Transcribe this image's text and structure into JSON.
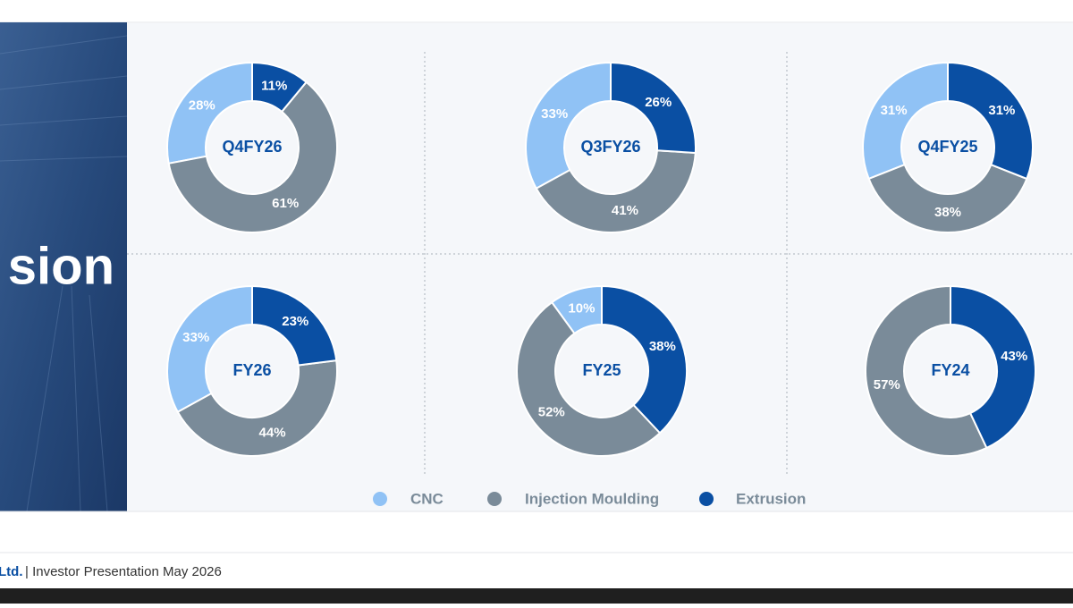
{
  "slide": {
    "heading": "sion",
    "footer_company": "Ltd.",
    "footer_text": "| Investor Presentation May 2026"
  },
  "chart_data": [
    {
      "type": "pie",
      "title": "Q4FY26",
      "categories": [
        "CNC",
        "Injection Moulding",
        "Extrusion"
      ],
      "values": [
        28,
        61,
        11
      ],
      "value_labels": [
        "28%",
        "61%",
        "11%"
      ],
      "colors": [
        "#90c2f5",
        "#7a8b99",
        "#0a4fa3"
      ]
    },
    {
      "type": "pie",
      "title": "Q3FY26",
      "categories": [
        "CNC",
        "Injection Moulding",
        "Extrusion"
      ],
      "values": [
        33,
        41,
        26
      ],
      "value_labels": [
        "33%",
        "41%",
        "26%"
      ],
      "colors": [
        "#90c2f5",
        "#7a8b99",
        "#0a4fa3"
      ]
    },
    {
      "type": "pie",
      "title": "Q4FY25",
      "categories": [
        "CNC",
        "Injection Moulding",
        "Extrusion"
      ],
      "values": [
        31,
        38,
        31
      ],
      "value_labels": [
        "31%",
        "38%",
        "31%"
      ],
      "colors": [
        "#90c2f5",
        "#7a8b99",
        "#0a4fa3"
      ]
    },
    {
      "type": "pie",
      "title": "FY26",
      "categories": [
        "CNC",
        "Injection Moulding",
        "Extrusion"
      ],
      "values": [
        33,
        44,
        23
      ],
      "value_labels": [
        "33%",
        "44%",
        "23%"
      ],
      "colors": [
        "#90c2f5",
        "#7a8b99",
        "#0a4fa3"
      ]
    },
    {
      "type": "pie",
      "title": "FY25",
      "categories": [
        "CNC",
        "Injection Moulding",
        "Extrusion"
      ],
      "values": [
        10,
        52,
        38
      ],
      "value_labels": [
        "10%",
        "52%",
        "38%"
      ],
      "colors": [
        "#90c2f5",
        "#7a8b99",
        "#0a4fa3"
      ]
    },
    {
      "type": "pie",
      "title": "FY24",
      "categories": [
        "Injection Moulding",
        "Extrusion"
      ],
      "values": [
        57,
        43
      ],
      "value_labels": [
        "57%",
        "43%"
      ],
      "colors": [
        "#7a8b99",
        "#0a4fa3"
      ]
    }
  ]
}
